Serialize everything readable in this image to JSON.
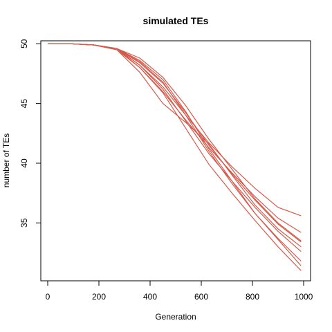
{
  "chart_data": {
    "type": "line",
    "title": "simulated TEs",
    "xlabel": "Generation",
    "ylabel": "number of TEs",
    "xlim": [
      -27,
      1027
    ],
    "ylim": [
      30.15,
      50.25
    ],
    "xticks": [
      0,
      200,
      400,
      600,
      800,
      1000
    ],
    "yticks": [
      35,
      40,
      45,
      50
    ],
    "grid": false,
    "legend": "none",
    "line_color": "#d35a4b",
    "x": [
      0,
      90,
      180,
      270,
      360,
      450,
      540,
      630,
      720,
      810,
      900,
      990
    ],
    "series": [
      {
        "values": [
          50,
          50,
          49.9,
          49.6,
          48.2,
          46.4,
          44.0,
          41.7,
          39.7,
          37.9,
          36.3,
          35.6
        ]
      },
      {
        "values": [
          50,
          50,
          49.9,
          49.6,
          48.0,
          46.0,
          43.6,
          41.3,
          39.2,
          37.2,
          35.4,
          34.2
        ]
      },
      {
        "values": [
          50,
          50,
          49.9,
          49.6,
          48.4,
          46.7,
          44.2,
          41.5,
          39.1,
          36.9,
          34.9,
          33.4
        ]
      },
      {
        "values": [
          50,
          50,
          49.9,
          49.5,
          47.6,
          45.0,
          43.4,
          41.6,
          39.0,
          36.5,
          34.5,
          33.0
        ]
      },
      {
        "values": [
          50,
          50,
          49.9,
          49.6,
          48.2,
          46.2,
          43.5,
          40.8,
          38.5,
          36.3,
          34.3,
          32.6
        ]
      },
      {
        "values": [
          50,
          50,
          49.9,
          49.6,
          48.5,
          46.8,
          44.0,
          41.0,
          38.3,
          35.8,
          33.7,
          31.8
        ]
      },
      {
        "values": [
          50,
          50,
          49.9,
          49.6,
          48.6,
          47.0,
          44.3,
          41.2,
          38.5,
          35.8,
          33.6,
          31.4
        ]
      },
      {
        "values": [
          50,
          50,
          49.9,
          49.5,
          48.0,
          45.9,
          42.9,
          39.9,
          37.5,
          35.2,
          33.0,
          31.0
        ]
      },
      {
        "values": [
          50,
          50,
          49.9,
          49.6,
          48.8,
          47.2,
          44.8,
          42.0,
          39.5,
          37.0,
          35.0,
          33.5
        ]
      }
    ]
  }
}
